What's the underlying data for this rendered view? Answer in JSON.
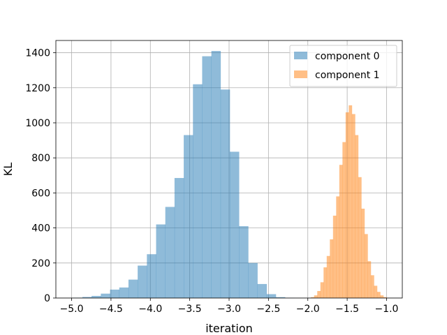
{
  "chart_data": {
    "type": "histogram",
    "xlabel": "iteration",
    "ylabel": "KL",
    "xlim": [
      -5.2,
      -0.8
    ],
    "ylim": [
      0,
      1470
    ],
    "xticks": [
      -5.0,
      -4.5,
      -4.0,
      -3.5,
      -3.0,
      -2.5,
      -2.0,
      -1.5,
      -1.0
    ],
    "xtick_labels": [
      "−5.0",
      "−4.5",
      "−4.0",
      "−3.5",
      "−3.0",
      "−2.5",
      "−2.0",
      "−1.5",
      "−1.0"
    ],
    "yticks": [
      0,
      200,
      400,
      600,
      800,
      1000,
      1200,
      1400
    ],
    "ytick_labels": [
      "0",
      "200",
      "400",
      "600",
      "800",
      "1000",
      "1200",
      "1400"
    ],
    "grid": true,
    "legend_position": "top-right",
    "series": [
      {
        "name": "component 0",
        "color": "#1f77b4",
        "opacity": 0.5,
        "bin_start": -4.98,
        "bin_width": 0.117,
        "values": [
          2,
          6,
          12,
          25,
          48,
          60,
          105,
          185,
          250,
          420,
          520,
          685,
          930,
          1220,
          1380,
          1410,
          1190,
          835,
          410,
          200,
          80,
          22,
          5,
          1
        ]
      },
      {
        "name": "component 1",
        "color": "#ff7f0e",
        "opacity": 0.5,
        "bin_start": -1.96,
        "bin_width": 0.04,
        "values": [
          5,
          15,
          40,
          90,
          175,
          240,
          335,
          470,
          580,
          760,
          890,
          1060,
          1100,
          1050,
          930,
          690,
          510,
          365,
          210,
          130,
          70,
          35,
          15,
          5
        ]
      }
    ]
  }
}
